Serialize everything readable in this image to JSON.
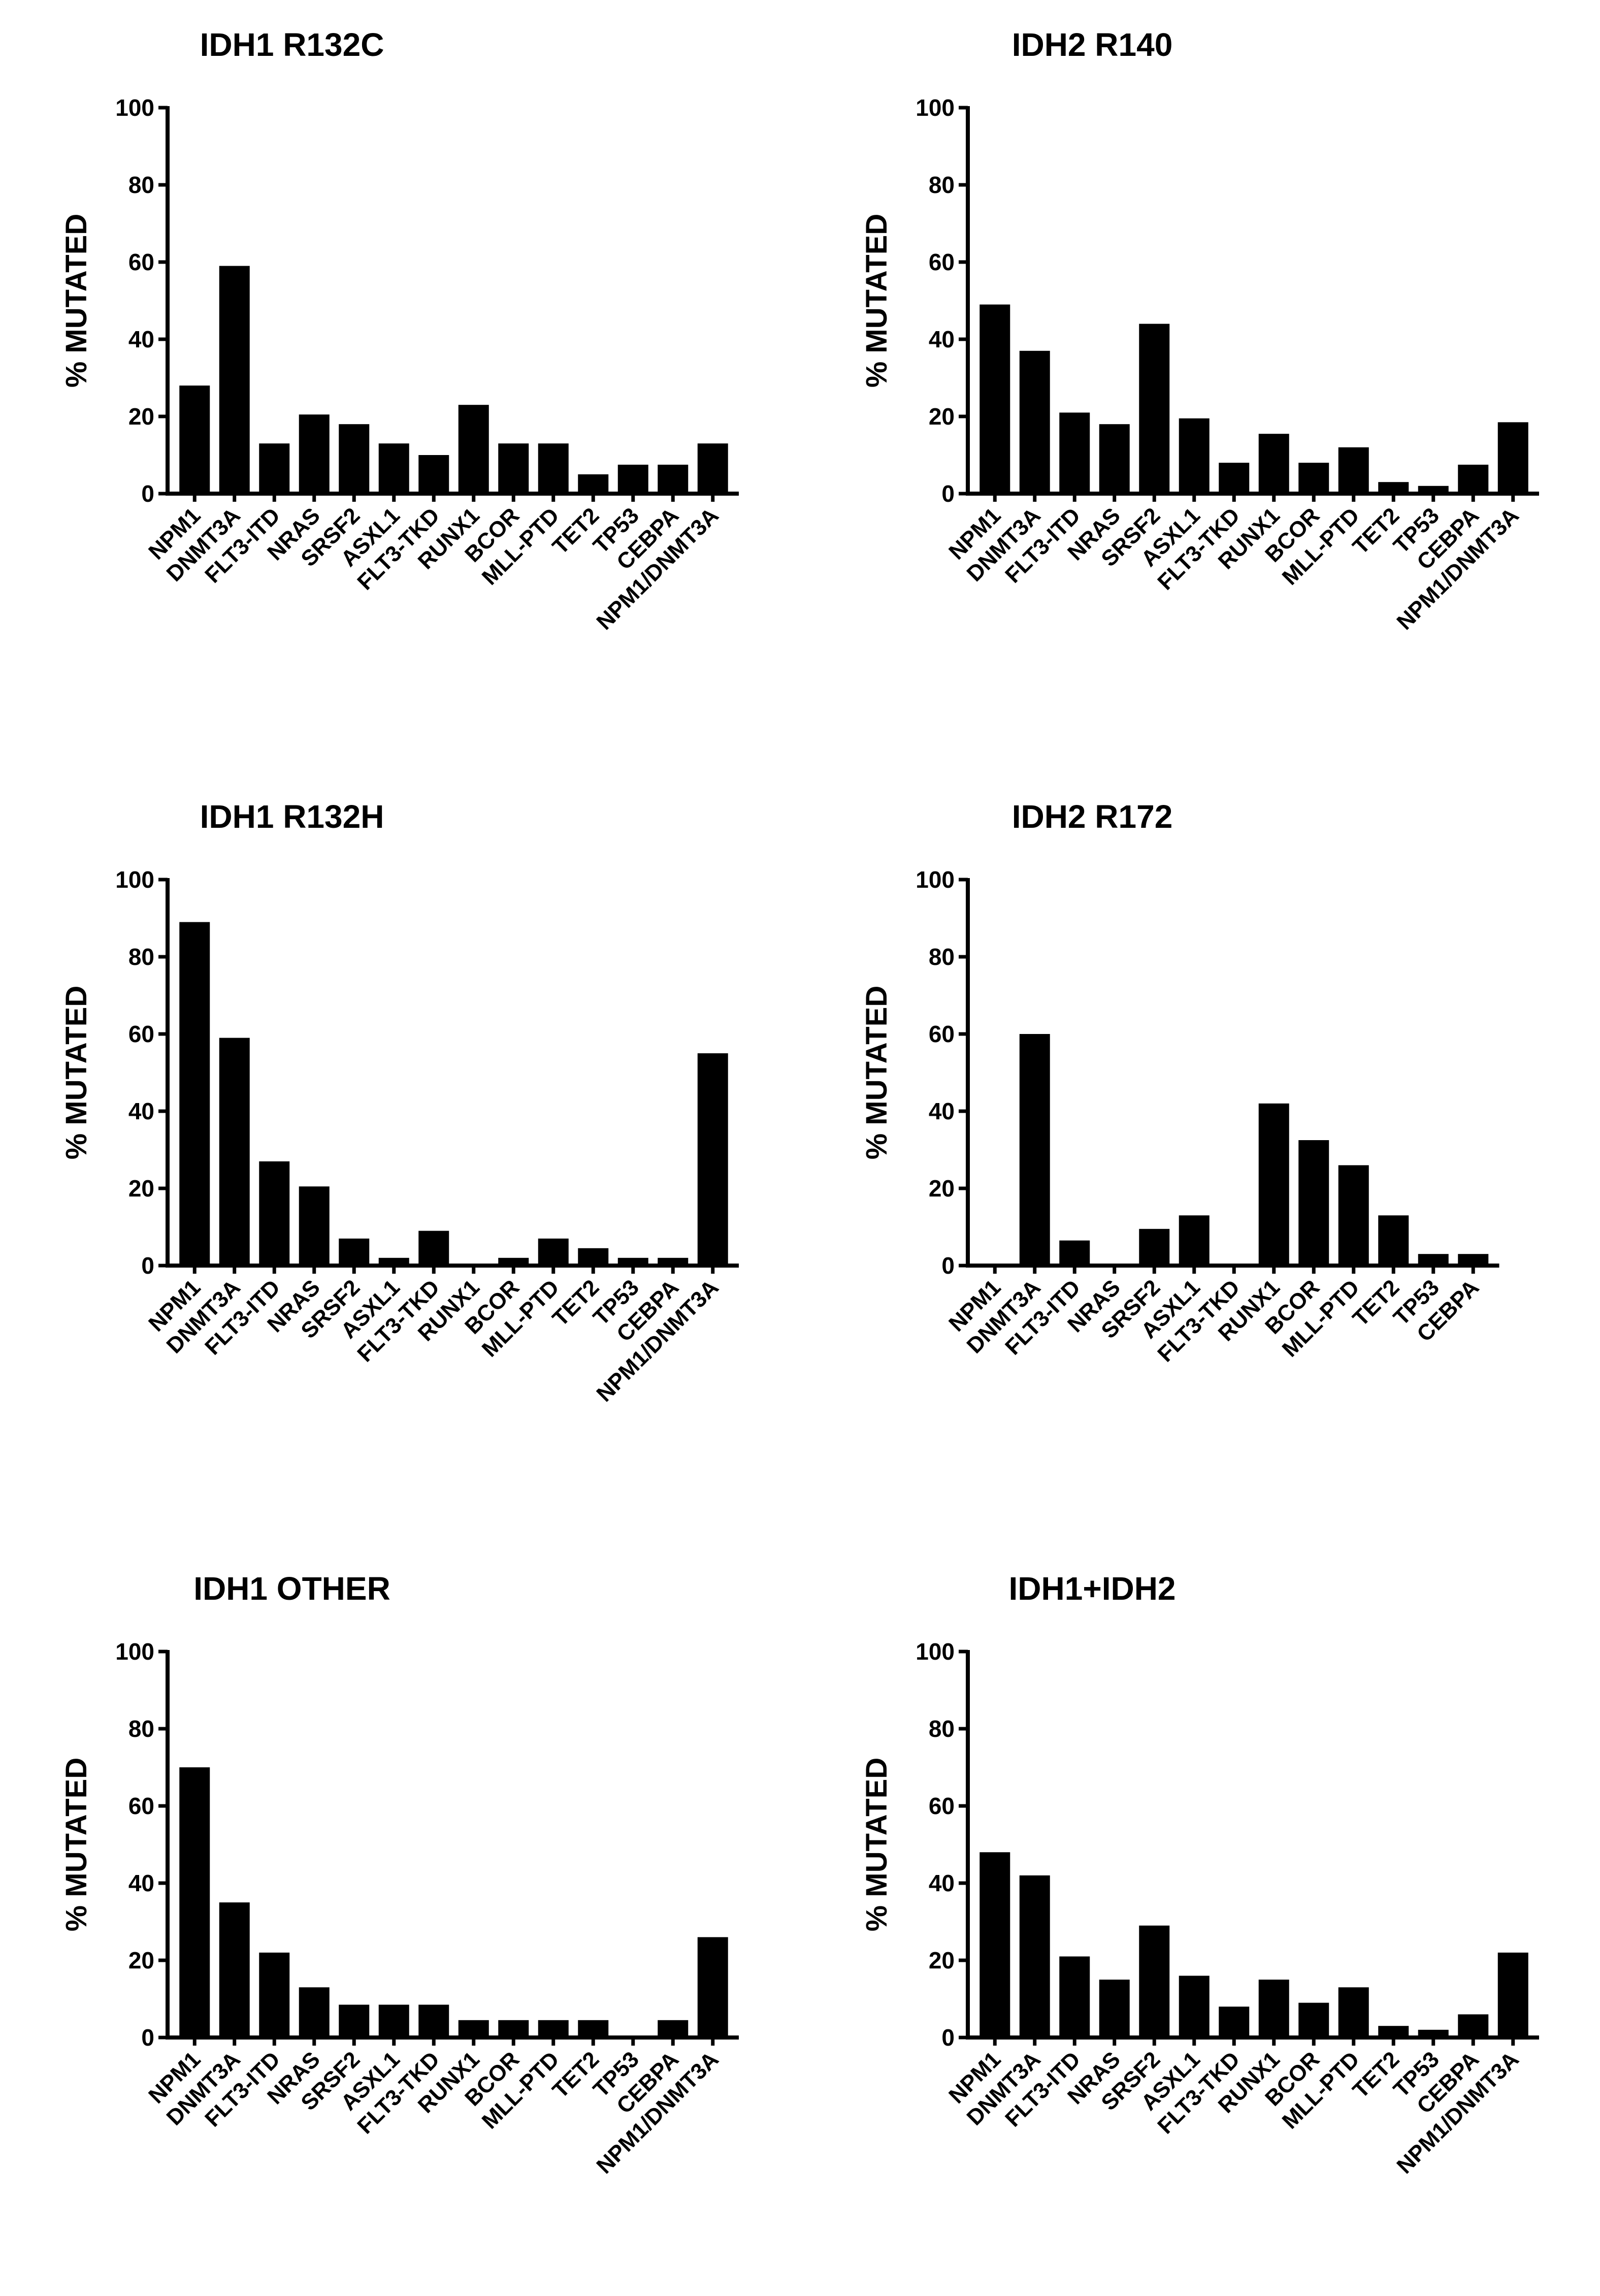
{
  "chart_data": [
    {
      "type": "bar",
      "title": "IDH1 R132C",
      "ylabel": "%  MUTATED",
      "ylim": [
        0,
        100
      ],
      "yticks": [
        "0",
        "20",
        "40",
        "60",
        "80",
        "100"
      ],
      "categories": [
        "NPM1",
        "DNMT3A",
        "FLT3-ITD",
        "NRAS",
        "SRSF2",
        "ASXL1",
        "FLT3-TKD",
        "RUNX1",
        "BCOR",
        "MLL-PTD",
        "TET2",
        "TP53",
        "CEBPA",
        "NPM1/DNMT3A"
      ],
      "values": [
        28,
        59,
        13,
        20.5,
        18,
        13,
        10,
        23,
        13,
        13,
        5,
        7.5,
        7.5,
        13
      ],
      "bar_color": "#000000"
    },
    {
      "type": "bar",
      "title": "IDH2  R140",
      "ylabel": "%  MUTATED",
      "ylim": [
        0,
        100
      ],
      "yticks": [
        "0",
        "20",
        "40",
        "60",
        "80",
        "100"
      ],
      "categories": [
        "NPM1",
        "DNMT3A",
        "FLT3-ITD",
        "NRAS",
        "SRSF2",
        "ASXL1",
        "FLT3-TKD",
        "RUNX1",
        "BCOR",
        "MLL-PTD",
        "TET2",
        "TP53",
        "CEBPA",
        "NPM1/DNMT3A"
      ],
      "values": [
        49,
        37,
        21,
        18,
        44,
        19.5,
        8,
        15.5,
        8,
        12,
        3,
        2,
        7.5,
        18.5
      ],
      "bar_color": "#000000"
    },
    {
      "type": "bar",
      "title": "IDH1 R132H",
      "ylabel": "%  MUTATED",
      "ylim": [
        0,
        100
      ],
      "yticks": [
        "0",
        "20",
        "40",
        "60",
        "80",
        "100"
      ],
      "categories": [
        "NPM1",
        "DNMT3A",
        "FLT3-ITD",
        "NRAS",
        "SRSF2",
        "ASXL1",
        "FLT3-TKD",
        "RUNX1",
        "BCOR",
        "MLL-PTD",
        "TET2",
        "TP53",
        "CEBPA",
        "NPM1/DNMT3A"
      ],
      "values": [
        89,
        59,
        27,
        20.5,
        7,
        2,
        9,
        0,
        2,
        7,
        4.5,
        2,
        2,
        55
      ],
      "bar_color": "#000000"
    },
    {
      "type": "bar",
      "title": "IDH2 R172",
      "ylabel": "%  MUTATED",
      "ylim": [
        0,
        100
      ],
      "yticks": [
        "0",
        "20",
        "40",
        "60",
        "80",
        "100"
      ],
      "categories": [
        "NPM1",
        "DNMT3A",
        "FLT3-ITD",
        "NRAS",
        "SRSF2",
        "ASXL1",
        "FLT3-TKD",
        "RUNX1",
        "BCOR",
        "MLL-PTD",
        "TET2",
        "TP53",
        "CEBPA"
      ],
      "values": [
        0,
        60,
        6.5,
        0,
        9.5,
        13,
        0,
        42,
        32.5,
        26,
        13,
        3,
        3
      ],
      "bar_color": "#000000"
    },
    {
      "type": "bar",
      "title": "IDH1 OTHER",
      "ylabel": "%  MUTATED",
      "ylim": [
        0,
        100
      ],
      "yticks": [
        "0",
        "20",
        "40",
        "60",
        "80",
        "100"
      ],
      "categories": [
        "NPM1",
        "DNMT3A",
        "FLT3-ITD",
        "NRAS",
        "SRSF2",
        "ASXL1",
        "FLT3-TKD",
        "RUNX1",
        "BCOR",
        "MLL-PTD",
        "TET2",
        "TP53",
        "CEBPA",
        "NPM1/DNMT3A"
      ],
      "values": [
        70,
        35,
        22,
        13,
        8.5,
        8.5,
        8.5,
        4.5,
        4.5,
        4.5,
        4.5,
        0,
        4.5,
        26
      ],
      "bar_color": "#000000"
    },
    {
      "type": "bar",
      "title": "IDH1+IDH2",
      "ylabel": "%  MUTATED",
      "ylim": [
        0,
        100
      ],
      "yticks": [
        "0",
        "20",
        "40",
        "60",
        "80",
        "100"
      ],
      "categories": [
        "NPM1",
        "DNMT3A",
        "FLT3-ITD",
        "NRAS",
        "SRSF2",
        "ASXL1",
        "FLT3-TKD",
        "RUNX1",
        "BCOR",
        "MLL-PTD",
        "TET2",
        "TP53",
        "CEBPA",
        "NPM1/DNMT3A"
      ],
      "values": [
        48,
        42,
        21,
        15,
        29,
        16,
        8,
        15,
        9,
        13,
        3,
        2,
        6,
        22
      ],
      "bar_color": "#000000"
    }
  ]
}
